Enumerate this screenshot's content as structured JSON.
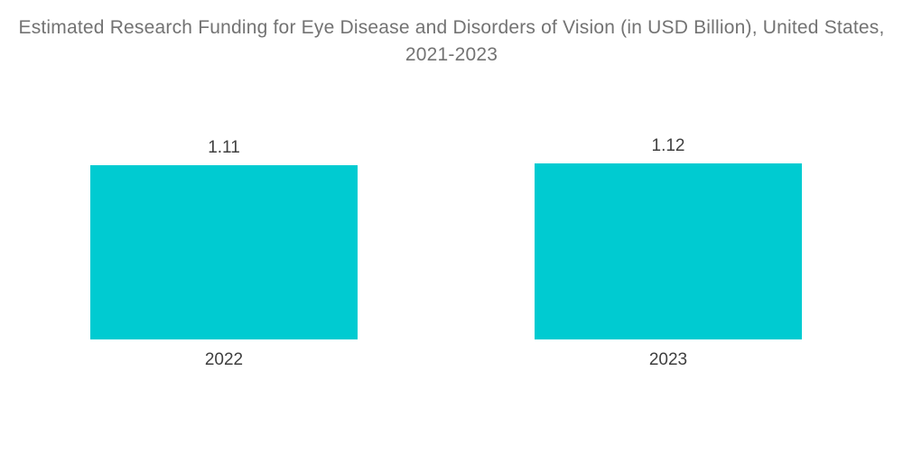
{
  "colors": {
    "bar": "#00CBD1",
    "title_text": "#737373",
    "label_text": "#3F3F3F",
    "background": "#FFFFFF"
  },
  "chart_data": {
    "type": "bar",
    "title": "Estimated Research Funding for Eye Disease and Disorders of Vision (in USD Billion), United States, 2021-2023",
    "categories": [
      "2022",
      "2023"
    ],
    "values": [
      1.11,
      1.12
    ],
    "value_labels": [
      "1.11",
      "1.12"
    ],
    "xlabel": "",
    "ylabel": "",
    "ylim": [
      0,
      1.12
    ],
    "grid": false,
    "legend": false,
    "axes_visible": false,
    "data_labels_position": "above-bar"
  }
}
